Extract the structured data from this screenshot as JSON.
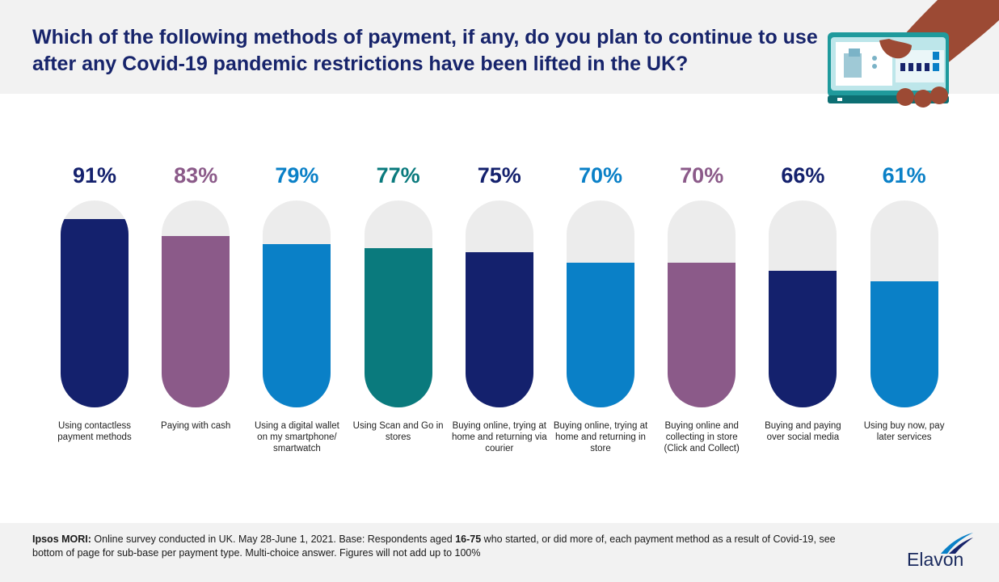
{
  "header": {
    "title": "Which of the following methods of payment, if any, do you plan to continue to use after any Covid-19 pandemic restrictions have been lifted in the UK?"
  },
  "colors": {
    "navy": "#14216d",
    "purple": "#8b5a89",
    "blue": "#0a80c7",
    "teal": "#0a7a7d",
    "track": "#ececec",
    "title": "#17246b"
  },
  "chart_data": {
    "type": "bar",
    "ylim": [
      0,
      100
    ],
    "categories": [
      "Using contactless payment methods",
      "Paying with cash",
      "Using a digital wallet on my smartphone/ smartwatch",
      "Using Scan and Go in stores",
      "Buying online, trying at home and returning via courier",
      "Buying online, trying at home and returning in store",
      "Buying online and collecting in store (Click and Collect)",
      "Buying and paying over social media",
      "Using buy now, pay later services"
    ],
    "values": [
      91,
      83,
      79,
      77,
      75,
      70,
      70,
      66,
      61
    ],
    "value_labels": [
      "91%",
      "83%",
      "79%",
      "77%",
      "75%",
      "70%",
      "70%",
      "66%",
      "61%"
    ],
    "bar_colors": [
      "#14216d",
      "#8b5a89",
      "#0a80c7",
      "#0a7a7d",
      "#14216d",
      "#0a80c7",
      "#8b5a89",
      "#14216d",
      "#0a80c7"
    ]
  },
  "footer": {
    "source_bold": "Ipsos MORI:",
    "note_part1": " Online survey conducted in UK. May 28-June 1, 2021. Base: Respondents aged ",
    "age_range": "16-75",
    "note_part2": " who started, or did more of, each payment method as a result of Covid-19, see bottom of page for sub-base per payment type. Multi-choice answer. Figures will not add up to 100%"
  },
  "logo": {
    "text": "Elavon"
  },
  "illustration": {
    "icon": "hand-holding-payment-terminal-icon"
  }
}
